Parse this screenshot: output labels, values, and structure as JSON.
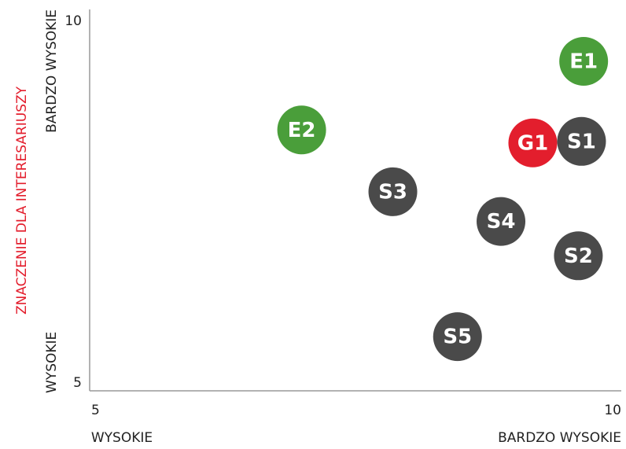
{
  "chart_data": {
    "type": "scatter",
    "ylabel": "ZNACZENIE DLA INTERESARIUSZY",
    "x_axis_labels": [
      "WYSOKIE",
      "BARDZO WYSOKIE"
    ],
    "y_axis_labels": [
      "WYSOKIE",
      "BARDZO WYSOKIE"
    ],
    "xlim": [
      5,
      10
    ],
    "ylim": [
      5,
      10
    ],
    "xticks": [
      5,
      10
    ],
    "yticks": [
      5,
      10
    ],
    "points": [
      {
        "label": "E1",
        "x": 9.66,
        "y": 9.32,
        "color": "#4a9e3a"
      },
      {
        "label": "E2",
        "x": 7.0,
        "y": 8.42,
        "color": "#4a9e3a"
      },
      {
        "label": "G1",
        "x": 9.18,
        "y": 8.25,
        "color": "#e31e2d"
      },
      {
        "label": "S1",
        "x": 9.64,
        "y": 8.27,
        "color": "#4a4a4a"
      },
      {
        "label": "S3",
        "x": 7.86,
        "y": 7.61,
        "color": "#4a4a4a"
      },
      {
        "label": "S4",
        "x": 8.88,
        "y": 7.22,
        "color": "#4a4a4a"
      },
      {
        "label": "S2",
        "x": 9.61,
        "y": 6.77,
        "color": "#4a4a4a"
      },
      {
        "label": "S5",
        "x": 8.47,
        "y": 5.71,
        "color": "#4a4a4a"
      }
    ]
  }
}
